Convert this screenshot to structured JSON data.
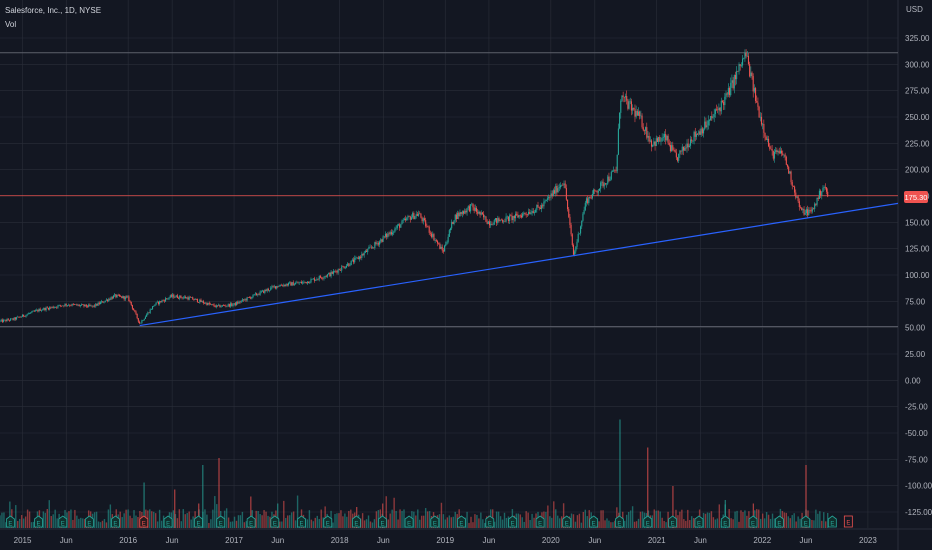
{
  "header": {
    "symbol_line": "Salesforce, Inc., 1D, NYSE",
    "vol_label": "Vol"
  },
  "currency": "USD",
  "last_price_label": "175.30",
  "colors": {
    "background": "#131722",
    "grid": "#2a2e39",
    "up": "#26a69a",
    "down": "#ef5350",
    "trendline": "#2962ff",
    "level_line": "#5d606b",
    "price_line": "#ef5350",
    "axis_text": "#b2b5be"
  },
  "chart_data": {
    "type": "candlestick",
    "title": "Salesforce, Inc., 1D, NYSE",
    "ylabel": "USD",
    "ylim": [
      -135,
      335
    ],
    "y_ticks": [
      "325.00",
      "300.00",
      "275.00",
      "250.00",
      "225.00",
      "200.00",
      "175.00",
      "150.00",
      "125.00",
      "100.00",
      "75.00",
      "50.00",
      "25.00",
      "0.00",
      "-25.00",
      "-50.00",
      "-75.00",
      "-100.00",
      "-125.00"
    ],
    "x_ticks": [
      {
        "label": "2015",
        "date": "2015-01-01"
      },
      {
        "label": "Jun",
        "date": "2015-06-01"
      },
      {
        "label": "2016",
        "date": "2016-01-01"
      },
      {
        "label": "Jun",
        "date": "2016-06-01"
      },
      {
        "label": "2017",
        "date": "2017-01-01"
      },
      {
        "label": "Jun",
        "date": "2017-06-01"
      },
      {
        "label": "2018",
        "date": "2018-01-01"
      },
      {
        "label": "Jun",
        "date": "2018-06-01"
      },
      {
        "label": "2019",
        "date": "2019-01-01"
      },
      {
        "label": "Jun",
        "date": "2019-06-01"
      },
      {
        "label": "2020",
        "date": "2020-01-01"
      },
      {
        "label": "Jun",
        "date": "2020-06-01"
      },
      {
        "label": "2021",
        "date": "2021-01-01"
      },
      {
        "label": "Jun",
        "date": "2021-06-01"
      },
      {
        "label": "2022",
        "date": "2022-01-01"
      },
      {
        "label": "Jun",
        "date": "2022-06-01"
      },
      {
        "label": "2023",
        "date": "2023-01-01"
      }
    ],
    "x_range": [
      "2014-10-15",
      "2023-04-15"
    ],
    "price_path": [
      [
        "2014-10-15",
        56
      ],
      [
        "2014-12-01",
        58
      ],
      [
        "2015-03-01",
        67
      ],
      [
        "2015-06-01",
        72
      ],
      [
        "2015-09-01",
        70
      ],
      [
        "2015-11-15",
        80
      ],
      [
        "2016-01-01",
        78
      ],
      [
        "2016-02-10",
        54
      ],
      [
        "2016-04-01",
        72
      ],
      [
        "2016-06-01",
        80
      ],
      [
        "2016-08-01",
        78
      ],
      [
        "2016-11-01",
        70
      ],
      [
        "2017-01-01",
        72
      ],
      [
        "2017-04-01",
        83
      ],
      [
        "2017-06-01",
        90
      ],
      [
        "2017-09-01",
        93
      ],
      [
        "2017-12-01",
        101
      ],
      [
        "2018-03-01",
        115
      ],
      [
        "2018-06-01",
        135
      ],
      [
        "2018-09-01",
        155
      ],
      [
        "2018-10-01",
        158
      ],
      [
        "2018-12-24",
        122
      ],
      [
        "2019-02-01",
        155
      ],
      [
        "2019-04-01",
        165
      ],
      [
        "2019-06-01",
        150
      ],
      [
        "2019-09-01",
        155
      ],
      [
        "2019-12-01",
        165
      ],
      [
        "2020-02-15",
        190
      ],
      [
        "2020-03-20",
        118
      ],
      [
        "2020-05-01",
        170
      ],
      [
        "2020-08-15",
        200
      ],
      [
        "2020-08-28",
        270
      ],
      [
        "2020-11-01",
        250
      ],
      [
        "2020-12-15",
        225
      ],
      [
        "2021-02-01",
        230
      ],
      [
        "2021-03-10",
        210
      ],
      [
        "2021-05-01",
        230
      ],
      [
        "2021-07-01",
        245
      ],
      [
        "2021-09-01",
        270
      ],
      [
        "2021-11-05",
        310
      ],
      [
        "2021-12-15",
        260
      ],
      [
        "2022-02-01",
        215
      ],
      [
        "2022-03-15",
        215
      ],
      [
        "2022-05-15",
        160
      ],
      [
        "2022-06-20",
        160
      ],
      [
        "2022-08-01",
        185
      ],
      [
        "2022-08-15",
        175.3
      ]
    ],
    "horizontal_levels": [
      311,
      51
    ],
    "price_line": 175.3,
    "trendline": [
      [
        "2016-02-10",
        52
      ],
      [
        "2023-04-15",
        168
      ]
    ],
    "volume_spikes": [
      [
        "2016-02-25",
        0.65
      ],
      [
        "2016-06-10",
        0.55
      ],
      [
        "2016-09-01",
        0.35
      ],
      [
        "2016-09-15",
        0.9
      ],
      [
        "2016-11-10",
        1.0
      ],
      [
        "2017-02-28",
        0.45
      ],
      [
        "2017-06-01",
        0.35
      ],
      [
        "2018-03-01",
        0.3
      ],
      [
        "2018-05-30",
        0.35
      ],
      [
        "2020-08-27",
        1.55
      ],
      [
        "2020-12-01",
        1.15
      ],
      [
        "2021-02-26",
        0.6
      ],
      [
        "2021-08-26",
        0.4
      ],
      [
        "2021-12-01",
        0.35
      ],
      [
        "2022-06-01",
        0.9
      ]
    ],
    "earnings_markers": [
      "2014-11-20",
      "2015-02-25",
      "2015-05-20",
      "2015-08-20",
      "2015-11-18",
      "2016-02-24",
      "2016-05-18",
      "2016-08-31",
      "2016-11-16",
      "2017-03-01",
      "2017-05-22",
      "2017-08-22",
      "2017-11-21",
      "2018-02-28",
      "2018-05-29",
      "2018-08-29",
      "2018-11-26",
      "2019-02-26",
      "2019-06-04",
      "2019-08-22",
      "2019-11-25",
      "2020-02-25",
      "2020-05-28",
      "2020-08-25",
      "2020-12-01",
      "2021-02-25",
      "2021-05-27",
      "2021-08-26",
      "2021-11-30",
      "2022-03-01",
      "2022-05-31",
      "2022-08-31"
    ],
    "highlighted_earnings_marker": "2016-02-24"
  }
}
